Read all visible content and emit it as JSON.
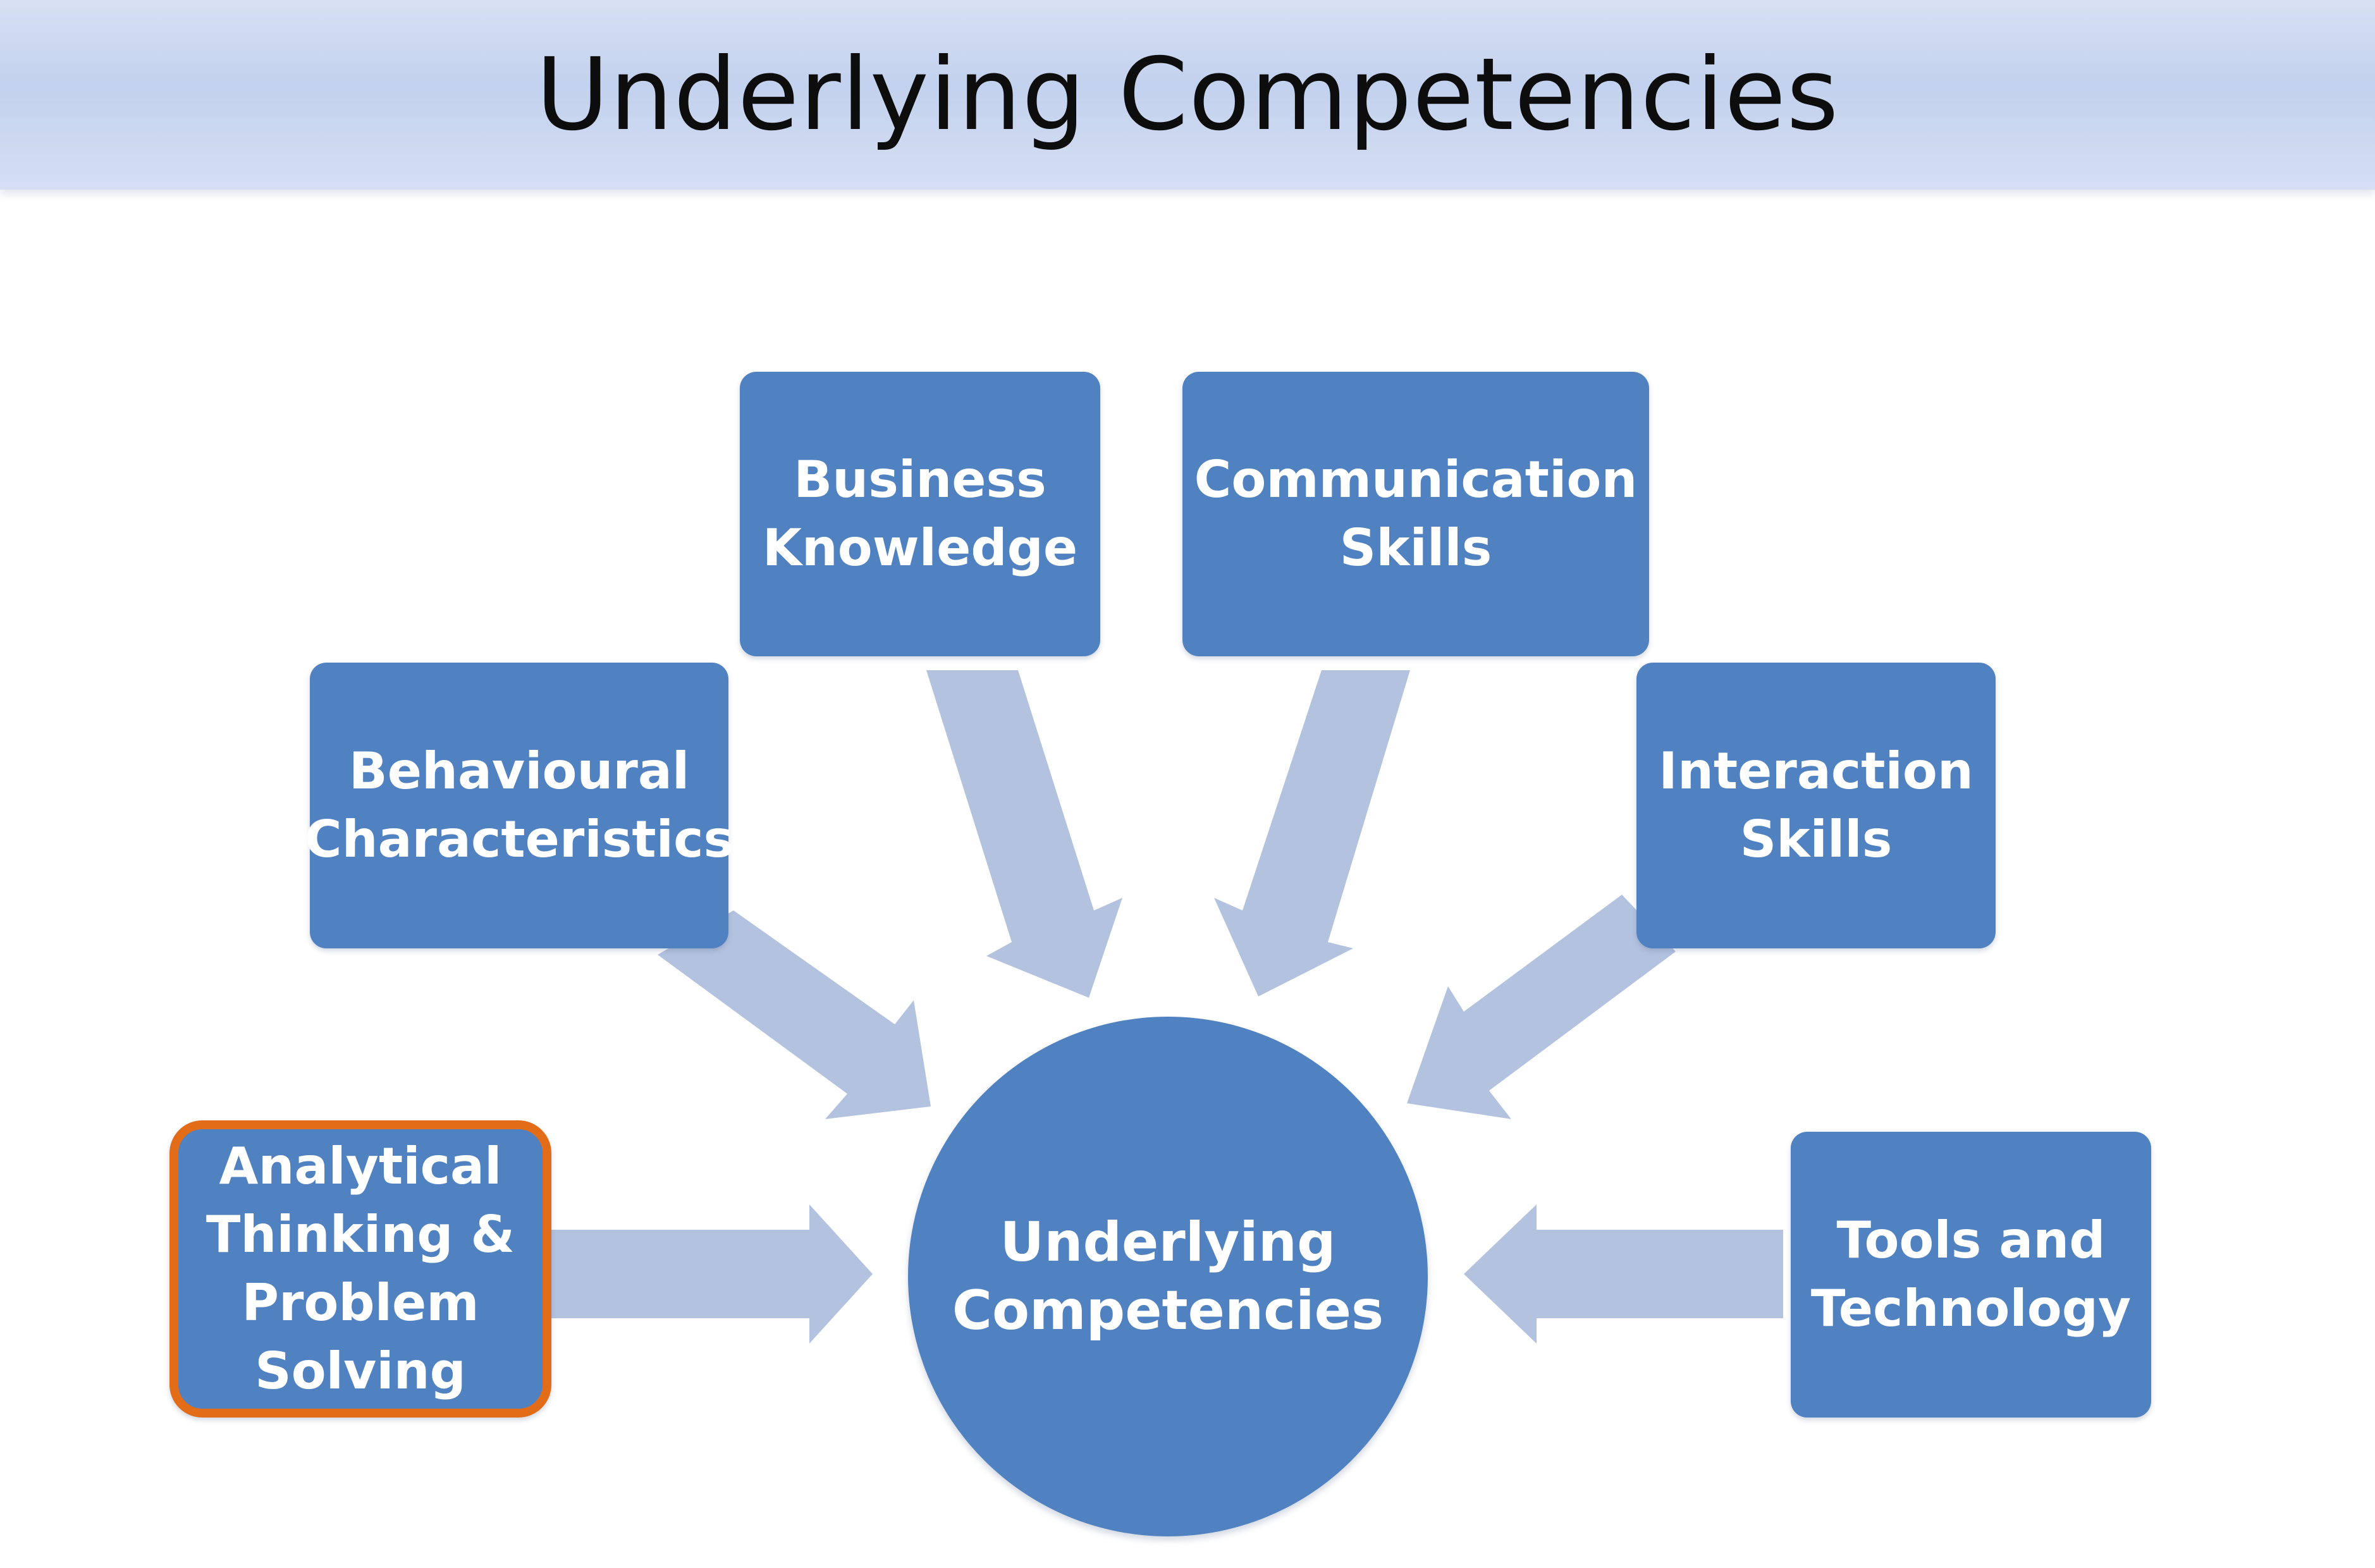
{
  "title": "Underlying Competencies",
  "center": {
    "label": "Underlying\nCompetencies"
  },
  "nodes": [
    {
      "id": "business-knowledge",
      "label": "Business\nKnowledge"
    },
    {
      "id": "communication-skills",
      "label": "Communication\nSkills"
    },
    {
      "id": "behavioural-characteristics",
      "label": "Behavioural\nCharacteristics"
    },
    {
      "id": "interaction-skills",
      "label": "Interaction\nSkills"
    },
    {
      "id": "analytical-thinking",
      "label": "Analytical\nThinking &\nProblem\nSolving",
      "selected": true
    },
    {
      "id": "tools-and-technology",
      "label": "Tools and\nTechnology"
    }
  ],
  "colors": {
    "node_fill": "#5081c1",
    "arrow_fill": "#b3c2df",
    "highlight_border": "#e36c19",
    "title_bar": "#c2d1ee"
  }
}
